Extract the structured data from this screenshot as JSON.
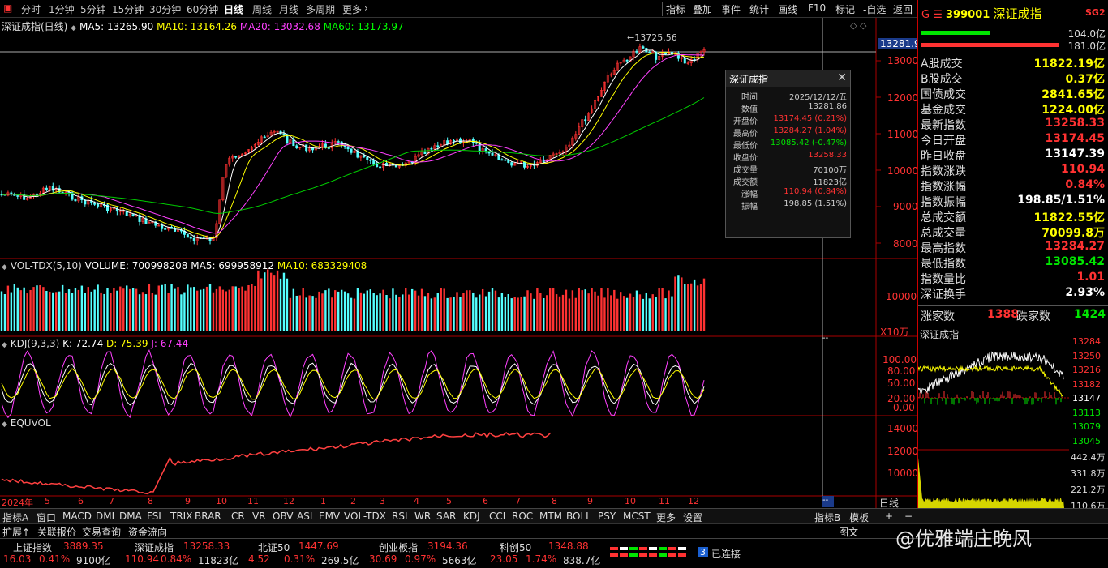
{
  "toolbar": {
    "periods": [
      "分时",
      "1分钟",
      "5分钟",
      "15分钟",
      "30分钟",
      "60分钟",
      "日线",
      "周线",
      "月线",
      "多周期",
      "更多"
    ],
    "active_period": "日线",
    "right_items": [
      "指标",
      "叠加",
      "事件",
      "统计",
      "画线",
      "F10",
      "标记",
      "-自选",
      "返回"
    ]
  },
  "main_chart": {
    "title": "深证成指(日线)",
    "ma5": "MA5: 13265.90",
    "ma10": "MA10: 13164.26",
    "ma20": "MA20: 13032.68",
    "ma60": "MA60: 13173.97",
    "peak_label": "13725.56",
    "y_ticks": [
      "13000",
      "12000",
      "11000",
      "10000",
      "9000",
      "8000"
    ],
    "current_price": "13281.9",
    "x_ticks": [
      "2024年",
      "5",
      "6",
      "7",
      "8",
      "9",
      "10",
      "11",
      "12",
      "1",
      "2",
      "3",
      "4",
      "5",
      "6",
      "7",
      "8",
      "9",
      "10",
      "11",
      "12"
    ]
  },
  "vol_panel": {
    "title": "VOL-TDX(5,10)",
    "volume": "VOLUME: 700998208",
    "ma5": "MA5: 699958912",
    "ma10": "MA10: 683329408",
    "y_tick": "10000",
    "unit": "X10万"
  },
  "kdj_panel": {
    "title": "KDJ(9,3,3)",
    "k": "K: 72.74",
    "d": "D: 75.39",
    "j": "J: 67.44",
    "y_ticks": [
      "100.00",
      "80.00",
      "50.00",
      "20.00",
      "0.00"
    ]
  },
  "equvol_panel": {
    "title": "EQUVOL",
    "y_ticks": [
      "14000",
      "12000",
      "10000"
    ]
  },
  "info_box": {
    "title": "深证成指",
    "rows": [
      {
        "label": "时间",
        "value": "2025/12/12/五",
        "color": "#ccc"
      },
      {
        "label": "数值",
        "value": "13281.86",
        "color": "#ccc"
      },
      {
        "label": "开盘价",
        "value": "13174.45 (0.21%)",
        "color": "#ff3232"
      },
      {
        "label": "最高价",
        "value": "13284.27 (1.04%)",
        "color": "#ff3232"
      },
      {
        "label": "最低价",
        "value": "13085.42 (-0.47%)",
        "color": "#00e600"
      },
      {
        "label": "收盘价",
        "value": "13258.33",
        "color": "#ff3232"
      },
      {
        "label": "成交量",
        "value": "70100万",
        "color": "#ccc"
      },
      {
        "label": "成交额",
        "value": "11823亿",
        "color": "#ccc"
      },
      {
        "label": "涨幅",
        "value": "110.94 (0.84%)",
        "color": "#ff3232"
      },
      {
        "label": "振幅",
        "value": "198.85 (1.51%)",
        "color": "#ccc"
      }
    ]
  },
  "right_panel": {
    "code": "399001",
    "name": "深证成指",
    "badge": "SG2",
    "ratio1": "104.0亿",
    "ratio2": "181.0亿",
    "rows": [
      {
        "k": "A股成交",
        "v": "11822.19亿",
        "c": "yellow"
      },
      {
        "k": "B股成交",
        "v": "0.37亿",
        "c": "yellow"
      },
      {
        "k": "国债成交",
        "v": "2841.65亿",
        "c": "yellow"
      },
      {
        "k": "基金成交",
        "v": "1224.00亿",
        "c": "yellow"
      },
      {
        "k": "最新指数",
        "v": "13258.33",
        "c": "red"
      },
      {
        "k": "今日开盘",
        "v": "13174.45",
        "c": "red"
      },
      {
        "k": "昨日收盘",
        "v": "13147.39",
        "c": "white"
      },
      {
        "k": "指数涨跌",
        "v": "110.94",
        "c": "red"
      },
      {
        "k": "指数涨幅",
        "v": "0.84%",
        "c": "red"
      },
      {
        "k": "指数振幅",
        "v": "198.85/1.51%",
        "c": "white"
      },
      {
        "k": "总成交额",
        "v": "11822.55亿",
        "c": "yellow"
      },
      {
        "k": "总成交量",
        "v": "70099.8万",
        "c": "yellow"
      },
      {
        "k": "最高指数",
        "v": "13284.27",
        "c": "red"
      },
      {
        "k": "最低指数",
        "v": "13085.42",
        "c": "green"
      },
      {
        "k": "指数量比",
        "v": "1.01",
        "c": "red"
      },
      {
        "k": "深证换手",
        "v": "2.93%",
        "c": "white"
      }
    ],
    "up_label": "涨家数",
    "up_count": "1388",
    "down_label": "跌家数",
    "down_count": "1424",
    "mini_title": "深证成指",
    "mini_ticks": [
      "13284",
      "13250",
      "13216",
      "13182",
      "13147",
      "13113",
      "13079",
      "13045"
    ],
    "vol_ticks": [
      "442.4万",
      "331.8万",
      "221.2万",
      "110.6万"
    ]
  },
  "bottom_tabs": [
    "指标A",
    "窗口",
    "MACD",
    "DMI",
    "DMA",
    "FSL",
    "TRIX",
    "BRAR",
    "CR",
    "VR",
    "OBV",
    "ASI",
    "EMV",
    "VOL-TDX",
    "RSI",
    "WR",
    "SAR",
    "KDJ",
    "CCI",
    "ROC",
    "MTM",
    "BOLL",
    "PSY",
    "MCST",
    "更多",
    "设置"
  ],
  "bottom_right_tabs": [
    "指标B",
    "模板",
    "+",
    "−"
  ],
  "daily_tab": "日线",
  "bottom_tabs2": [
    "扩展↑",
    "关联报价",
    "交易查询",
    "资金流向"
  ],
  "bottom_tabs2_right": [
    "图文"
  ],
  "status": {
    "items": [
      {
        "name": "上证指数",
        "price": "3889.35",
        "chg": "16.03",
        "pct": "0.41%",
        "amt": "9100亿",
        "c": "#ff3232"
      },
      {
        "name": "深证成指",
        "price": "13258.33",
        "chg": "110.94",
        "pct": "0.84%",
        "amt": "11823亿",
        "c": "#ff3232"
      },
      {
        "name": "北证50",
        "price": "1447.69",
        "chg": "4.52",
        "pct": "0.31%",
        "amt": "269.5亿",
        "c": "#ff3232"
      },
      {
        "name": "创业板指",
        "price": "3194.36",
        "chg": "30.69",
        "pct": "0.97%",
        "amt": "5663亿",
        "c": "#ff3232"
      },
      {
        "name": "科创50",
        "price": "1348.88",
        "chg": "23.05",
        "pct": "1.74%",
        "amt": "838.7亿",
        "c": "#ff3232"
      }
    ],
    "connected": "已连接",
    "conn_num": "3",
    "watermark": "@优雅端庄晚风"
  }
}
